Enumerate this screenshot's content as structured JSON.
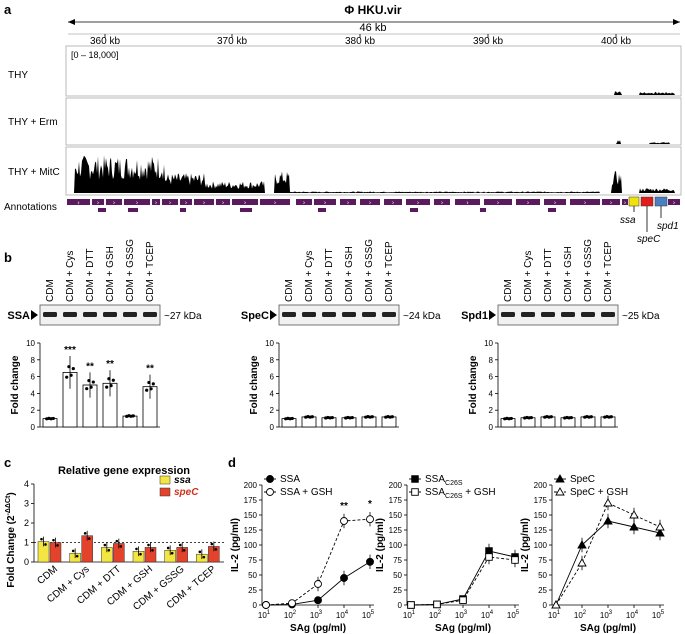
{
  "panel_labels": {
    "a": "a",
    "b": "b",
    "c": "c",
    "d": "d"
  },
  "panel_a": {
    "title": "Φ HKU.vir",
    "span": "46 kb",
    "coord_ticks": [
      "360 kb",
      "370 kb",
      "380 kb",
      "390 kb",
      "400 kb"
    ],
    "range_label": "[0 – 18,000]",
    "tracks": [
      "THY",
      "THY + Erm",
      "THY + MitC"
    ],
    "annotations_label": "Annotations",
    "genes": [
      "ssa",
      "speC",
      "spd1"
    ],
    "colors": {
      "track": "#000000",
      "annotation": "#5b1a5e",
      "ssa": "#f2e20a",
      "speC": "#e11c1c",
      "spd1": "#4a7fc1"
    }
  },
  "panel_b": {
    "lanes": [
      "CDM",
      "CDM + Cys",
      "CDM + DTT",
      "CDM + GSH",
      "CDM + GSSG",
      "CDM + TCEP"
    ],
    "blots": [
      {
        "protein": "SSA",
        "size": "~27 kDa"
      },
      {
        "protein": "SpeC",
        "size": "~24 kDa"
      },
      {
        "protein": "Spd1",
        "size": "~25 kDa"
      }
    ],
    "ylabel": "Fold change",
    "yticks": [
      "0",
      "2",
      "4",
      "6",
      "8",
      "10"
    ],
    "significance": [
      "",
      "***",
      "**",
      "**",
      "",
      "**"
    ]
  },
  "panel_c": {
    "title": "Relative gene expression",
    "ylabel": "Fold Change (2",
    "ylabel_sup": "-ΔΔCt",
    "ylabel_end": ")",
    "yticks": [
      "0",
      "1",
      "2",
      "3",
      "4"
    ],
    "legend": [
      {
        "name": "ssa",
        "color": "#f4e642"
      },
      {
        "name": "speC",
        "color": "#e2432a"
      }
    ]
  },
  "panel_d": {
    "ylabel": "IL-2 (pg/ml)",
    "xlabel": "SAg (pg/ml)",
    "yticks": [
      "0",
      "25",
      "50",
      "75",
      "100",
      "125",
      "150",
      "175",
      "200"
    ],
    "xticks": [
      "1",
      "2",
      "3",
      "4",
      "5"
    ],
    "xtick_base": "10",
    "subplots": [
      {
        "legend": [
          {
            "text": "SSA"
          },
          {
            "text": "SSA + GSH"
          }
        ],
        "stars": [
          "**",
          "*"
        ]
      },
      {
        "legend": [
          {
            "text": "SSA",
            "sub": "C26S"
          },
          {
            "text": "SSA",
            "sub": "C26S",
            "suffix": " + GSH"
          }
        ],
        "stars": []
      },
      {
        "legend": [
          {
            "text": "SpeC"
          },
          {
            "text": "SpeC + GSH"
          }
        ],
        "stars": []
      }
    ]
  },
  "chart_data": [
    {
      "type": "bar",
      "title": "",
      "ylabel": "Fold change",
      "categories": [
        "CDM",
        "CDM + Cys",
        "CDM + DTT",
        "CDM + GSH",
        "CDM + GSSG",
        "CDM + TCEP"
      ],
      "series": [
        {
          "name": "SSA",
          "values": [
            1,
            6.5,
            5,
            5.2,
            1.3,
            4.8
          ]
        }
      ],
      "ylim": [
        0,
        10
      ]
    },
    {
      "type": "bar",
      "ylabel": "Fold change",
      "categories": [
        "CDM",
        "CDM + Cys",
        "CDM + DTT",
        "CDM + GSH",
        "CDM + GSSG",
        "CDM + TCEP"
      ],
      "series": [
        {
          "name": "SpeC",
          "values": [
            1,
            1.2,
            1.1,
            1.1,
            1.2,
            1.2
          ]
        }
      ],
      "ylim": [
        0,
        10
      ]
    },
    {
      "type": "bar",
      "ylabel": "Fold change",
      "categories": [
        "CDM",
        "CDM + Cys",
        "CDM + DTT",
        "CDM + GSH",
        "CDM + GSSG",
        "CDM + TCEP"
      ],
      "series": [
        {
          "name": "Spd1",
          "values": [
            1,
            1.1,
            1.2,
            1.1,
            1.2,
            1.2
          ]
        }
      ],
      "ylim": [
        0,
        10
      ]
    },
    {
      "type": "bar",
      "title": "Relative gene expression",
      "ylabel": "Fold Change (2-ΔΔCt)",
      "categories": [
        "CDM",
        "CDM + Cys",
        "CDM + DTT",
        "CDM + GSH",
        "CDM + GSSG",
        "CDM + TCEP"
      ],
      "series": [
        {
          "name": "ssa",
          "values": [
            1.05,
            0.45,
            0.75,
            0.55,
            0.6,
            0.4
          ]
        },
        {
          "name": "speC",
          "values": [
            1.0,
            1.35,
            0.95,
            0.75,
            0.75,
            0.8
          ]
        }
      ],
      "ylim": [
        0,
        4
      ]
    },
    {
      "type": "line",
      "ylabel": "IL-2 (pg/ml)",
      "xlabel": "SAg (pg/ml)",
      "x": [
        1,
        2,
        3,
        4,
        5
      ],
      "xscale": "log10",
      "ylim": [
        0,
        200
      ],
      "series": [
        {
          "name": "SSA",
          "values": [
            0,
            1,
            8,
            45,
            72
          ]
        },
        {
          "name": "SSA + GSH",
          "values": [
            0,
            3,
            35,
            140,
            143
          ]
        }
      ]
    },
    {
      "type": "line",
      "ylabel": "IL-2 (pg/ml)",
      "xlabel": "SAg (pg/ml)",
      "x": [
        1,
        2,
        3,
        4,
        5
      ],
      "xscale": "log10",
      "ylim": [
        0,
        200
      ],
      "series": [
        {
          "name": "SSAC26S",
          "values": [
            0,
            1,
            10,
            90,
            80
          ]
        },
        {
          "name": "SSAC26S + GSH",
          "values": [
            0,
            1,
            8,
            80,
            75
          ]
        }
      ]
    },
    {
      "type": "line",
      "ylabel": "IL-2 (pg/ml)",
      "xlabel": "SAg (pg/ml)",
      "x": [
        1,
        2,
        3,
        4,
        5
      ],
      "xscale": "log10",
      "ylim": [
        0,
        200
      ],
      "series": [
        {
          "name": "SpeC",
          "values": [
            0,
            100,
            140,
            130,
            120
          ]
        },
        {
          "name": "SpeC + GSH",
          "values": [
            0,
            70,
            170,
            150,
            130
          ]
        }
      ]
    }
  ]
}
